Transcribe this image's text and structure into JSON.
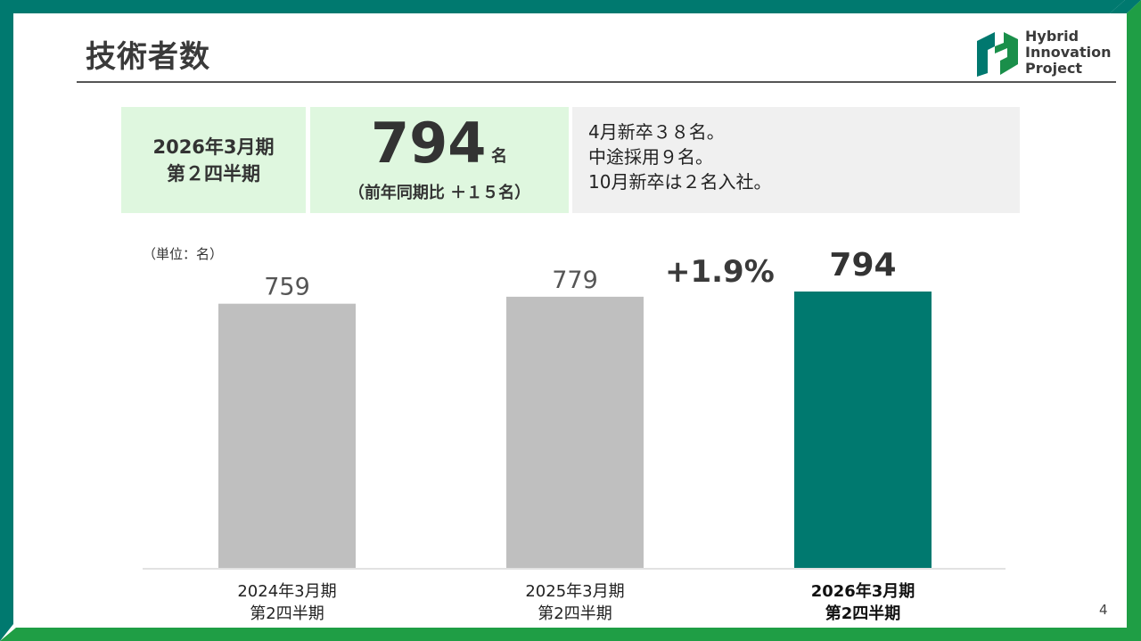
{
  "page_title": "技術者数",
  "logo": {
    "lines": [
      "Hybrid",
      "Innovation",
      "Project"
    ],
    "colors": [
      "#1a8f4a",
      "#00786f"
    ]
  },
  "summary": {
    "period_lines": [
      "2026年3月期",
      "第２四半期"
    ],
    "count": "794",
    "count_unit": "名",
    "yoy": "（前年同期比 ＋１５名）",
    "notes": [
      "4月新卒３８名。",
      "中途採用９名。",
      "10月新卒は２名入社。"
    ]
  },
  "unit_label": "（単位：名）",
  "growth_label": "+1.9%",
  "page_number": "4",
  "colors": {
    "accent": "#00796f",
    "gray_bar": "#bfbfbf",
    "border_green": "#00796f",
    "border_light_green": "#1f9e45",
    "summary_bg": "#dff7df",
    "notes_bg": "#f0f0f0"
  },
  "chart_data": {
    "type": "bar",
    "categories": [
      [
        "2024年3月期",
        "第2四半期"
      ],
      [
        "2025年3月期",
        "第2四半期"
      ],
      [
        "2026年3月期",
        "第2四半期"
      ]
    ],
    "values": [
      759,
      779,
      794
    ],
    "data_labels": [
      "759",
      "779",
      "794"
    ],
    "highlight_index": 2,
    "ylim": [
      0,
      810
    ],
    "grid": false,
    "title": "",
    "xlabel": "",
    "ylabel": ""
  }
}
